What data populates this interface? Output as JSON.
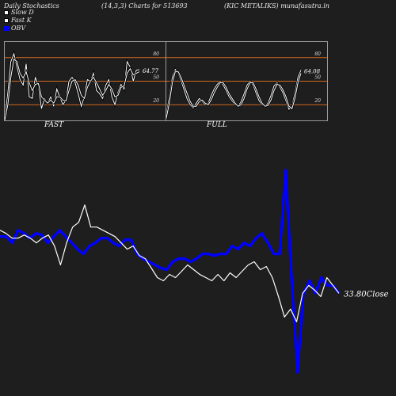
{
  "header": {
    "title": "Daily Stochastics",
    "params": "(14,3,3) Charts for 513693",
    "company": "(KIC METALIKS) munafasutra.in"
  },
  "legend": [
    {
      "label": "Slow  D",
      "color": "#ffffff"
    },
    {
      "label": "Fast K",
      "color": "#ffffff"
    },
    {
      "label": "OBV",
      "color": "#0000ff"
    }
  ],
  "panels": {
    "fast": {
      "label": "FAST",
      "value_label": "64.77"
    },
    "full": {
      "label": "FULL",
      "value_label": "64.08"
    }
  },
  "obv_label": "33.80Close",
  "chart_data": [
    {
      "type": "line",
      "title": "FAST",
      "ylim": [
        0,
        100
      ],
      "y_ticks": [
        20,
        50,
        80
      ],
      "reference_lines": [
        20,
        50,
        80
      ],
      "reference_color": "#d2691e",
      "series": [
        {
          "values": [
            2,
            35,
            75,
            85,
            68,
            52,
            45,
            72,
            30,
            28,
            55,
            44,
            15,
            28,
            22,
            30,
            18,
            40,
            30,
            20,
            26,
            50,
            55,
            48,
            34,
            18,
            30,
            52,
            50,
            60,
            38,
            34,
            28,
            45,
            52,
            30,
            20,
            36,
            46,
            40,
            75,
            68,
            50,
            64,
            64.77
          ]
        },
        {
          "values": [
            0,
            20,
            55,
            78,
            75,
            60,
            54,
            62,
            48,
            38,
            46,
            47,
            30,
            26,
            22,
            26,
            22,
            30,
            30,
            26,
            25,
            38,
            50,
            52,
            45,
            32,
            28,
            42,
            50,
            55,
            48,
            40,
            32,
            38,
            46,
            40,
            30,
            32,
            42,
            44,
            60,
            66,
            58,
            60,
            62
          ]
        }
      ]
    },
    {
      "type": "line",
      "title": "FULL",
      "ylim": [
        0,
        100
      ],
      "y_ticks": [
        20,
        50,
        80
      ],
      "reference_lines": [
        20,
        50,
        80
      ],
      "reference_color": "#d2691e",
      "series": [
        {
          "values": [
            8,
            30,
            55,
            65,
            60,
            50,
            38,
            27,
            20,
            16,
            22,
            28,
            24,
            20,
            22,
            32,
            40,
            46,
            50,
            45,
            38,
            30,
            25,
            20,
            18,
            24,
            34,
            45,
            50,
            45,
            35,
            25,
            20,
            18,
            22,
            32,
            44,
            48,
            42,
            35,
            25,
            14,
            18,
            35,
            55,
            64.08
          ]
        },
        {
          "values": [
            3,
            22,
            48,
            62,
            62,
            54,
            44,
            34,
            24,
            18,
            18,
            24,
            26,
            22,
            20,
            26,
            35,
            42,
            48,
            48,
            42,
            34,
            28,
            22,
            18,
            20,
            28,
            40,
            48,
            48,
            40,
            30,
            22,
            18,
            19,
            26,
            38,
            46,
            45,
            39,
            30,
            18,
            15,
            28,
            48,
            60
          ]
        }
      ]
    },
    {
      "type": "line",
      "title": "OBV",
      "close_label": "33.80Close",
      "series": [
        {
          "name": "OBV",
          "color": "#0000ff",
          "values": [
            56,
            56,
            52,
            60,
            58,
            55,
            58,
            57,
            52,
            56,
            60,
            56,
            52,
            48,
            45,
            50,
            52,
            55,
            55,
            52,
            50,
            54,
            54,
            45,
            42,
            40,
            38,
            36,
            35,
            40,
            42,
            42,
            40,
            42,
            45,
            45,
            44,
            45,
            45,
            50,
            48,
            52,
            50,
            55,
            58,
            52,
            45,
            45,
            98,
            30,
            -30,
            20,
            28,
            20,
            30,
            25,
            25,
            20
          ]
        },
        {
          "name": "Close",
          "color": "#ffffff",
          "values": [
            60,
            58,
            55,
            55,
            57,
            55,
            52,
            55,
            57,
            50,
            38,
            52,
            62,
            65,
            76,
            62,
            62,
            60,
            58,
            56,
            52,
            48,
            50,
            44,
            42,
            36,
            30,
            28,
            32,
            30,
            34,
            38,
            35,
            32,
            30,
            28,
            32,
            28,
            33,
            30,
            34,
            38,
            40,
            35,
            37,
            30,
            18,
            5,
            10,
            2,
            20,
            25,
            22,
            18,
            30,
            25,
            20
          ]
        }
      ]
    }
  ]
}
